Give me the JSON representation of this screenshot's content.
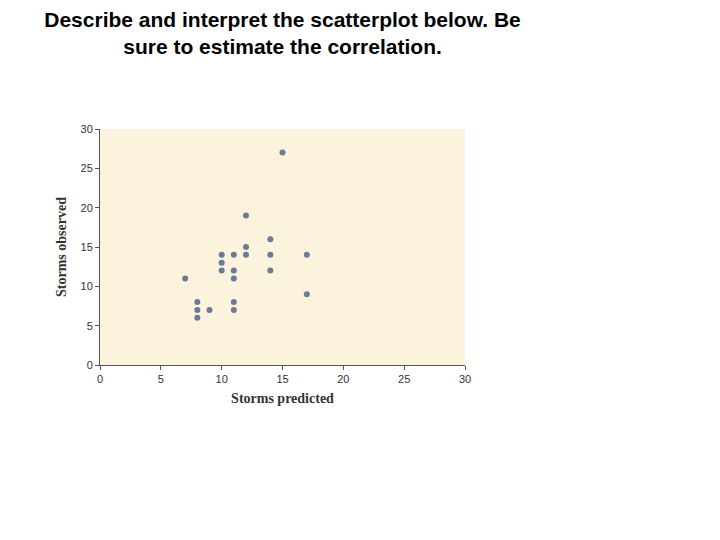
{
  "chart_data": {
    "type": "scatter",
    "title": "Describe and interpret the scatterplot below. Be sure to estimate the correlation.",
    "x_label": "Storms predicted",
    "y_label": "Storms observed",
    "x": [
      7,
      15,
      12,
      14,
      12,
      10,
      11,
      12,
      14,
      17,
      10,
      10,
      11,
      14,
      11,
      8,
      11,
      8,
      9,
      11,
      8,
      17
    ],
    "y": [
      11,
      27,
      19,
      16,
      15,
      14,
      14,
      14,
      14,
      14,
      13,
      12,
      12,
      12,
      11,
      8,
      8,
      7,
      7,
      7,
      6,
      9
    ],
    "xlim": [
      0,
      30
    ],
    "ylim": [
      0,
      30
    ],
    "xticks": [
      0,
      5,
      10,
      15,
      20,
      25,
      30
    ],
    "yticks": [
      0,
      5,
      10,
      15,
      20,
      25,
      30
    ],
    "color": "#6b7a99",
    "marker": "circle",
    "grid": false
  }
}
